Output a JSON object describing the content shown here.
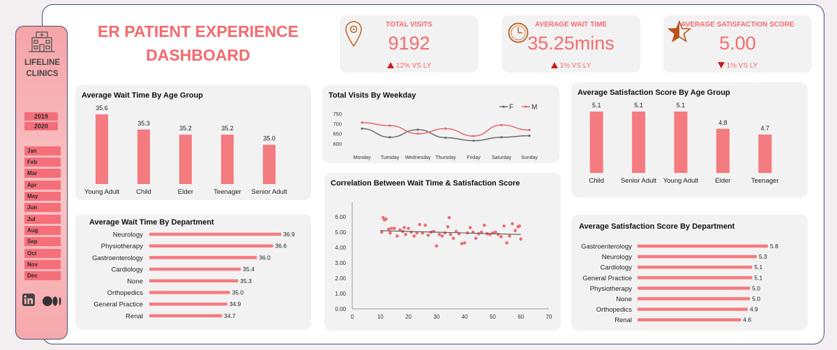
{
  "dashboard": {
    "title": "ER PATIENT EXPERIENCE DASHBOARD"
  },
  "sidebar": {
    "brand": "LIFELINE\nCLINICS",
    "years": [
      "2019",
      "2020"
    ],
    "months": [
      "Jan",
      "Feb",
      "Mar",
      "Apr",
      "May",
      "Jun",
      "Jul",
      "Aug",
      "Sep",
      "Oct",
      "Nov",
      "Dec"
    ],
    "icons": [
      "clinic-building-icon",
      "linkedin-icon",
      "medium-icon"
    ]
  },
  "kpis": {
    "visits": {
      "title": "TOTAL VISITS",
      "value": "9192",
      "delta": "12% VS LY",
      "direction": "up",
      "icon": "location-pin-icon"
    },
    "wait": {
      "title": "AVERAGE WAIT TIME",
      "value": "35.25mins",
      "delta": "1% VS LY",
      "direction": "up",
      "icon": "clock-icon"
    },
    "satisfaction": {
      "title": "AVERAGE SATISFACTION SCORE",
      "value": "5.00",
      "delta": "1% VS LY",
      "direction": "down",
      "icon": "half-star-icon"
    }
  },
  "colors": {
    "accent": "#f36b6f",
    "bar": "#f47b7f",
    "male_line": "#e4676c",
    "female_line": "#6b6b6b",
    "panel": "#f2f2f2",
    "frame": "#3f4f78"
  },
  "chart_data": [
    {
      "id": "wait_by_age",
      "type": "bar",
      "title": "Average Wait Time By Age Group",
      "categories": [
        "Young Adult",
        "Child",
        "Elder",
        "Teenager",
        "Senior Adult"
      ],
      "values": [
        35.6,
        35.3,
        35.2,
        35.2,
        35.0
      ],
      "labels": [
        "35.6",
        "35.3",
        "35.2",
        "35.2",
        "35.0"
      ],
      "ylim": [
        34.5,
        35.6
      ]
    },
    {
      "id": "visits_by_weekday",
      "type": "line",
      "title": "Total Visits By Weekday",
      "categories": [
        "Monday",
        "Tuesday",
        "Wednesday",
        "Thursday",
        "Friday",
        "Saturday",
        "Sunday"
      ],
      "series": [
        {
          "name": "F",
          "values": [
            675,
            632,
            670,
            630,
            615,
            632,
            640
          ]
        },
        {
          "name": "M",
          "values": [
            705,
            690,
            650,
            675,
            638,
            693,
            668
          ]
        }
      ],
      "yticks": [
        "750",
        "700",
        "650",
        "600"
      ],
      "ylim": [
        590,
        760
      ],
      "legend": "top-right"
    },
    {
      "id": "satisfaction_by_age",
      "type": "bar",
      "title": "Average Satisfaction Score By Age Group",
      "categories": [
        "Child",
        "Senior Adult",
        "Young Adult",
        "Elder",
        "Teenager"
      ],
      "values": [
        5.1,
        5.1,
        5.1,
        4.8,
        4.7
      ],
      "labels": [
        "5.1",
        "5.1",
        "5.1",
        "4.8",
        "4.7"
      ],
      "ylim": [
        4.3,
        5.1
      ]
    },
    {
      "id": "wait_by_department",
      "type": "bar",
      "orientation": "horizontal",
      "title": "Average Wait Time By Department",
      "categories": [
        "Neurology",
        "Physiotherapy",
        "Gastroenterology",
        "Cardiology",
        "None",
        "Orthopedics",
        "General Practice",
        "Renal"
      ],
      "values": [
        36.9,
        36.6,
        36.0,
        35.4,
        35.3,
        35.0,
        34.9,
        34.7
      ],
      "labels": [
        "36.9",
        "36.6",
        "36.0",
        "35.4",
        "35.3",
        "35.0",
        "34.9",
        "34.7"
      ],
      "xlim": [
        32.0,
        36.9
      ]
    },
    {
      "id": "wait_vs_satisfaction",
      "type": "scatter",
      "title": "Correlation Between Wait Time & Satisfaction Score",
      "x": [
        10.5,
        11,
        11.5,
        12,
        13,
        13.5,
        14,
        15,
        16,
        17,
        18,
        18.5,
        19,
        20,
        21,
        22,
        23,
        24,
        25,
        26,
        27,
        28,
        29,
        30,
        31,
        32,
        33,
        34,
        34.5,
        35,
        36,
        37,
        38,
        39,
        40,
        41,
        42,
        43,
        44,
        45,
        46,
        47,
        48,
        49,
        50,
        51,
        52,
        53,
        54,
        55,
        56,
        57,
        58,
        59,
        59.5,
        60
      ],
      "y": [
        5.0,
        5.95,
        5.8,
        5.85,
        5.2,
        4.95,
        5.25,
        5.25,
        4.75,
        5.15,
        5.05,
        5.3,
        4.85,
        5.25,
        5.0,
        4.75,
        4.95,
        5.5,
        4.95,
        5.45,
        4.8,
        5.0,
        5.05,
        4.1,
        4.85,
        4.75,
        4.95,
        5.35,
        5.95,
        4.85,
        4.6,
        5.05,
        4.9,
        4.25,
        4.3,
        4.95,
        5.3,
        5.0,
        4.6,
        4.9,
        5.0,
        5.45,
        4.9,
        4.85,
        4.95,
        5.0,
        4.85,
        4.7,
        5.4,
        4.3,
        4.75,
        5.55,
        5.1,
        5.35,
        5.4,
        4.55
      ],
      "trend": [
        [
          10,
          5.1
        ],
        [
          60,
          4.85
        ]
      ],
      "xticks": [
        "0",
        "10",
        "20",
        "30",
        "40",
        "50",
        "60",
        "70"
      ],
      "yticks": [
        "6.00",
        "5.00",
        "4.00",
        "3.00",
        "2.00",
        "1.00",
        "0.00"
      ],
      "xlim": [
        0,
        70
      ],
      "ylim": [
        0,
        6.5
      ]
    },
    {
      "id": "satisfaction_by_department",
      "type": "bar",
      "orientation": "horizontal",
      "title": "Average Satisfaction Score By Department",
      "categories": [
        "Gastroenterology",
        "Neurology",
        "Cardiology",
        "General Practice",
        "Physiotherapy",
        "None",
        "Orthopedics",
        "Renal"
      ],
      "values": [
        5.8,
        5.3,
        5.1,
        5.1,
        5.0,
        5.0,
        4.9,
        4.6
      ],
      "labels": [
        "5.8",
        "5.3",
        "5.1",
        "5.1",
        "5.0",
        "5.0",
        "4.9",
        "4.6"
      ],
      "xlim": [
        0,
        5.8
      ]
    }
  ]
}
